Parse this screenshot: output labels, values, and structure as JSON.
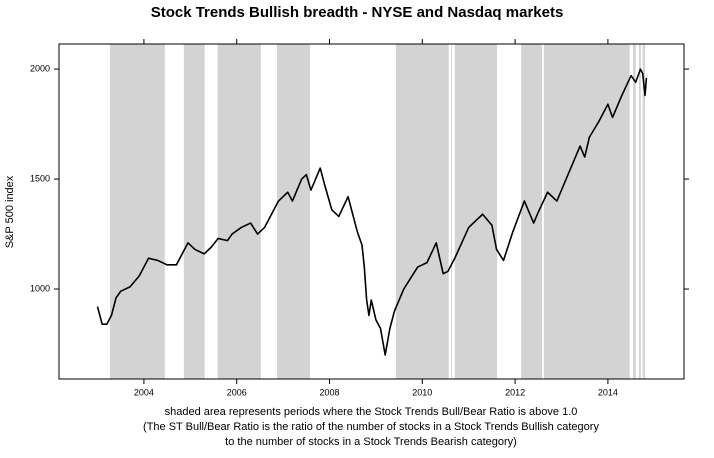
{
  "chart_data": {
    "type": "line",
    "title": "Stock Trends Bullish breadth - NYSE and Nasdaq markets",
    "ylabel": "S&P 500 index",
    "notes": [
      "shaded area represents periods where the Stock Trends Bull/Bear Ratio is above 1.0",
      "(The ST Bull/Bear Ratio is the ratio of the number of stocks in a Stock Trends Bullish category",
      "to the number of stocks in a Stock Trends Bearish category)"
    ],
    "xlim": [
      2002.17,
      2015.64
    ],
    "xticks": [
      2004,
      2006,
      2008,
      2010,
      2012,
      2014
    ],
    "ylim": [
      591,
      2114
    ],
    "yticks": [
      1000,
      1500,
      2000
    ],
    "shade_color": "#d3d3d3",
    "shaded_periods": [
      [
        2003.27,
        2004.45
      ],
      [
        2004.86,
        2005.31
      ],
      [
        2005.59,
        2006.52
      ],
      [
        2006.87,
        2007.58
      ],
      [
        2009.43,
        2010.57
      ],
      [
        2010.62,
        2010.64
      ],
      [
        2010.7,
        2011.61
      ],
      [
        2012.13,
        2012.58
      ],
      [
        2012.62,
        2014.47
      ],
      [
        2014.54,
        2014.6
      ],
      [
        2014.67,
        2014.71
      ],
      [
        2014.75,
        2014.8
      ]
    ],
    "series": [
      {
        "name": "S&P 500",
        "color": "#000000",
        "x": [
          2003.0,
          2003.05,
          2003.1,
          2003.2,
          2003.3,
          2003.4,
          2003.5,
          2003.7,
          2003.9,
          2004.1,
          2004.3,
          2004.5,
          2004.7,
          2004.95,
          2005.1,
          2005.3,
          2005.45,
          2005.6,
          2005.8,
          2005.9,
          2006.1,
          2006.3,
          2006.45,
          2006.6,
          2006.9,
          2007.1,
          2007.2,
          2007.4,
          2007.5,
          2007.6,
          2007.8,
          2007.9,
          2008.05,
          2008.2,
          2008.4,
          2008.6,
          2008.7,
          2008.75,
          2008.8,
          2008.85,
          2008.9,
          2009.0,
          2009.1,
          2009.2,
          2009.3,
          2009.4,
          2009.6,
          2009.9,
          2010.1,
          2010.3,
          2010.45,
          2010.55,
          2010.7,
          2011.0,
          2011.3,
          2011.5,
          2011.6,
          2011.75,
          2011.95,
          2012.2,
          2012.4,
          2012.5,
          2012.7,
          2012.9,
          2013.1,
          2013.4,
          2013.5,
          2013.6,
          2013.8,
          2014.0,
          2014.1,
          2014.3,
          2014.5,
          2014.6,
          2014.7,
          2014.75,
          2014.8,
          2014.83
        ],
        "values": [
          920,
          880,
          840,
          840,
          880,
          960,
          990,
          1010,
          1060,
          1140,
          1130,
          1110,
          1110,
          1210,
          1180,
          1160,
          1190,
          1230,
          1220,
          1250,
          1280,
          1300,
          1250,
          1280,
          1400,
          1440,
          1400,
          1500,
          1520,
          1450,
          1550,
          1470,
          1360,
          1330,
          1420,
          1260,
          1200,
          1100,
          950,
          880,
          950,
          860,
          820,
          700,
          820,
          900,
          1000,
          1100,
          1120,
          1210,
          1070,
          1080,
          1140,
          1280,
          1340,
          1290,
          1180,
          1130,
          1260,
          1400,
          1300,
          1350,
          1440,
          1400,
          1500,
          1650,
          1600,
          1690,
          1760,
          1840,
          1780,
          1880,
          1970,
          1940,
          2000,
          1980,
          1880,
          1960
        ]
      }
    ]
  }
}
